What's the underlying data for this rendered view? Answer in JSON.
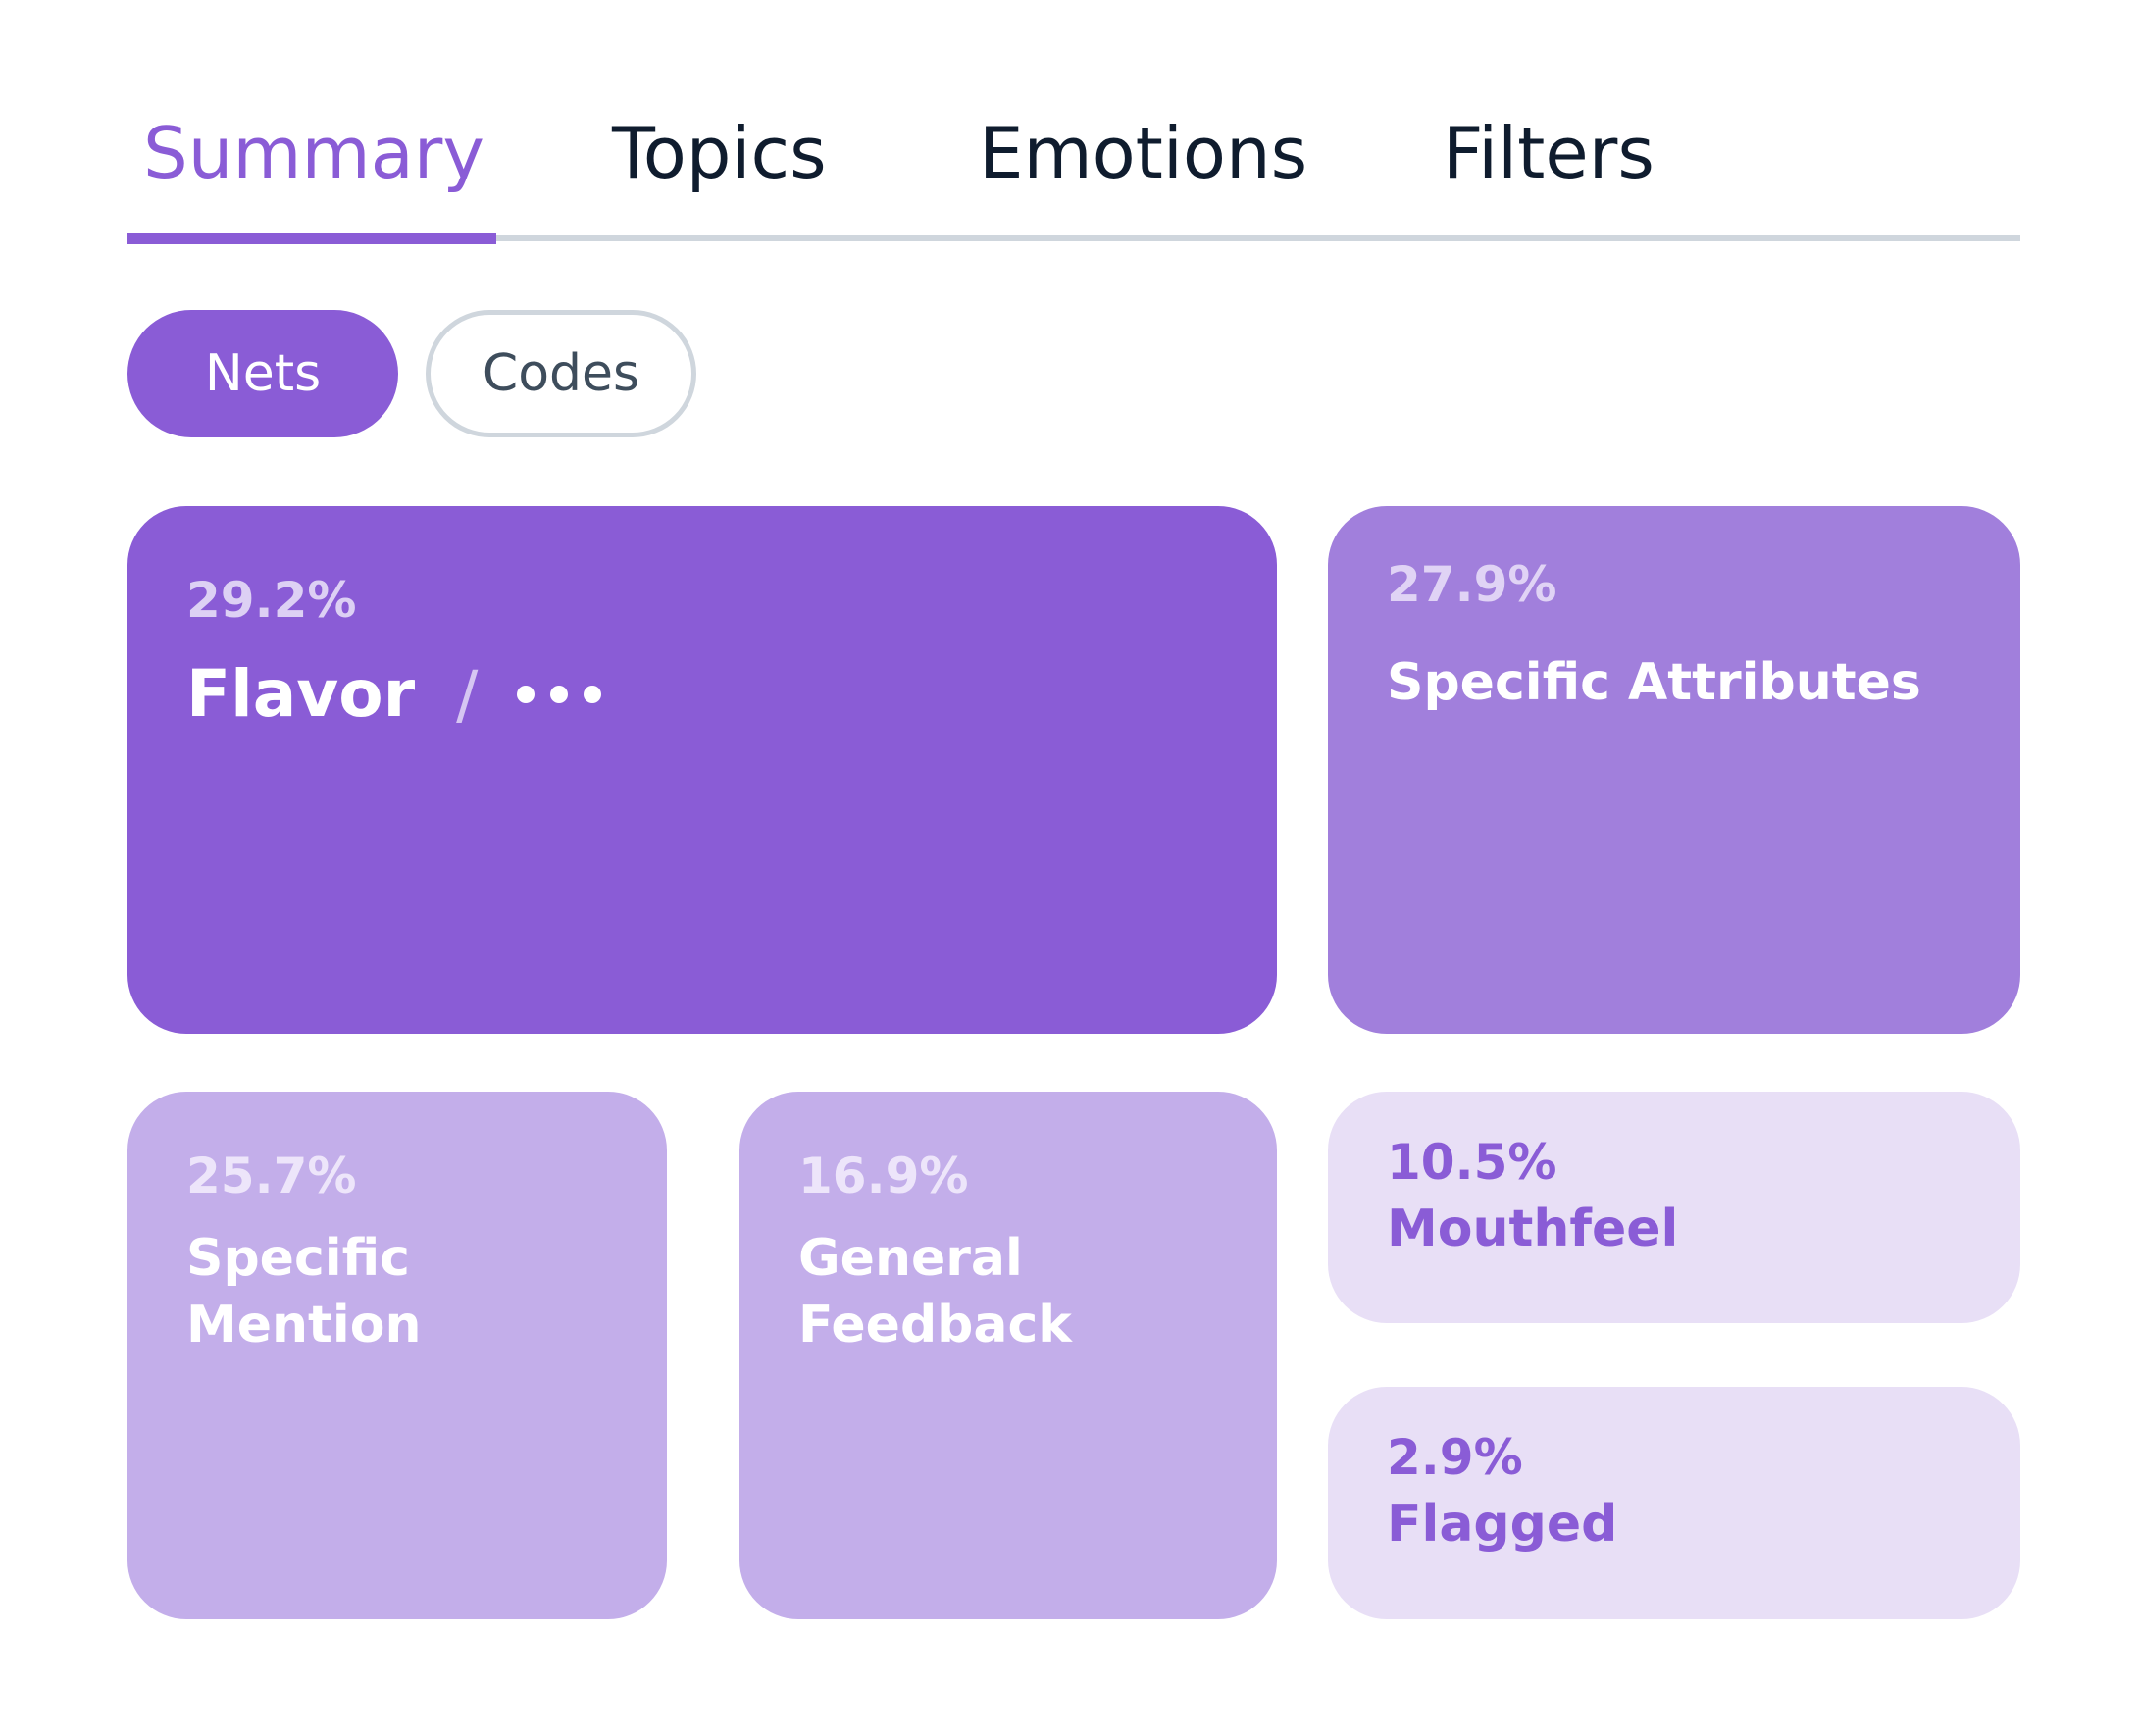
{
  "tabs": {
    "items": [
      "Summary",
      "Topics",
      "Emotions",
      "Filters"
    ],
    "active": "Summary"
  },
  "toggle": {
    "nets": "Nets",
    "codes": "Codes",
    "active": "Nets"
  },
  "tiles": {
    "flavor": {
      "percent": "29.2%",
      "label": "Flavor",
      "separator": "/"
    },
    "specific_attributes": {
      "percent": "27.9%",
      "label": "Specific Attributes"
    },
    "specific_mention": {
      "percent": "25.7%",
      "label": "Specific\nMention"
    },
    "general_feedback": {
      "percent": "16.9%",
      "label": "General\nFeedback"
    },
    "mouthfeel": {
      "percent": "10.5%",
      "label": "Mouthfeel"
    },
    "flagged": {
      "percent": "2.9%",
      "label": "Flagged"
    }
  },
  "colors": {
    "accent": "#8a5cd6",
    "tile_mid": "#a17fdc",
    "tile_light": "#c3aeea",
    "tile_lightest": "#e8dff6",
    "tab_text": "#0f1c2e",
    "rule": "#cfd6dd"
  },
  "icons": {
    "more": "more-options-icon"
  }
}
